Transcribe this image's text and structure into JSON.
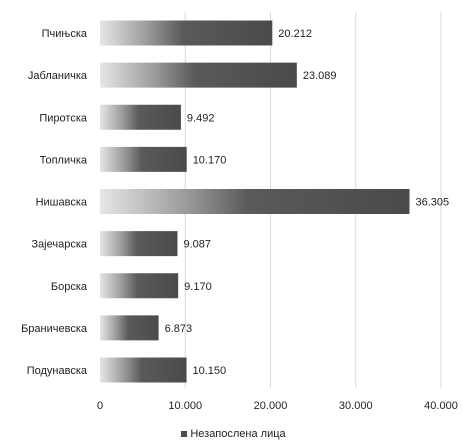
{
  "chart_data": {
    "type": "bar",
    "orientation": "horizontal",
    "categories": [
      "Пчињска",
      "Јабланичка",
      "Пиротска",
      "Топличка",
      "Нишавска",
      "Зајечарска",
      "Борска",
      "Браничевска",
      "Подунавска"
    ],
    "series": [
      {
        "name": "Незапослена лица",
        "values": [
          20212,
          23089,
          9492,
          10170,
          36305,
          9087,
          9170,
          6873,
          10150
        ],
        "labels": [
          "20.212",
          "23.089",
          "9.492",
          "10.170",
          "36.305",
          "9.087",
          "9.170",
          "6.873",
          "10.150"
        ]
      }
    ],
    "xlim": [
      0,
      40000
    ],
    "x_ticks": [
      0,
      10000,
      20000,
      30000,
      40000
    ],
    "x_tick_labels": [
      "0",
      "10.000",
      "20.000",
      "30.000",
      "40.000"
    ],
    "grid": "vertical",
    "legend": "bottom-center",
    "bar_color": "#4d4d4d"
  }
}
